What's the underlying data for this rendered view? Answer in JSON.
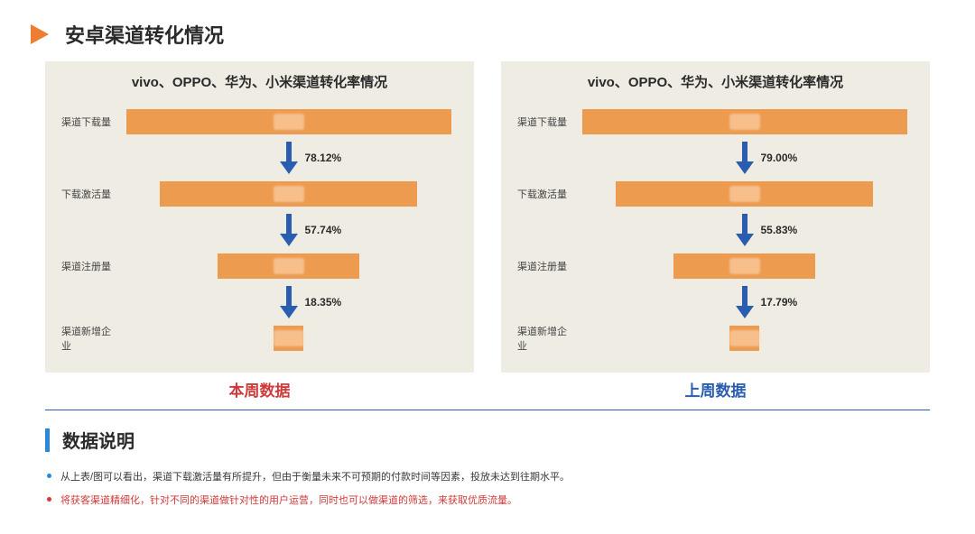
{
  "title": "安卓渠道转化情况",
  "colors": {
    "accent_orange": "#ed7d31",
    "bar_fill": "#ed9b4e",
    "panel_bg": "#efece3",
    "arrow_blue": "#2a5db0",
    "caption_red": "#d03a3a",
    "caption_blue": "#2a5db0",
    "vbar_blue": "#2a88d8"
  },
  "funnel_left": {
    "title": "vivo、OPPO、华为、小米渠道转化率情况",
    "caption": "本周数据",
    "stages": [
      {
        "label": "渠道下载量",
        "bar_width_pct": 96
      },
      {
        "label": "下载激活量",
        "bar_width_pct": 76,
        "rate_into": "78.12%"
      },
      {
        "label": "渠道注册量",
        "bar_width_pct": 42,
        "rate_into": "57.74%"
      },
      {
        "label": "渠道新增企业",
        "bar_width_pct": 9,
        "rate_into": "18.35%"
      }
    ]
  },
  "funnel_right": {
    "title": "vivo、OPPO、华为、小米渠道转化率情况",
    "caption": "上周数据",
    "stages": [
      {
        "label": "渠道下载量",
        "bar_width_pct": 96
      },
      {
        "label": "下载激活量",
        "bar_width_pct": 76,
        "rate_into": "79.00%"
      },
      {
        "label": "渠道注册量",
        "bar_width_pct": 42,
        "rate_into": "55.83%"
      },
      {
        "label": "渠道新增企业",
        "bar_width_pct": 9,
        "rate_into": "17.79%"
      }
    ]
  },
  "explain": {
    "heading": "数据说明",
    "line1": "从上表/图可以看出，渠道下载激活量有所提升，但由于衡量未来不可预期的付款时间等因素，投放未达到往期水平。",
    "line2": "将获客渠道精细化，针对不同的渠道做针对性的用户运营，同时也可以做渠道的筛选，来获取优质流量。"
  }
}
